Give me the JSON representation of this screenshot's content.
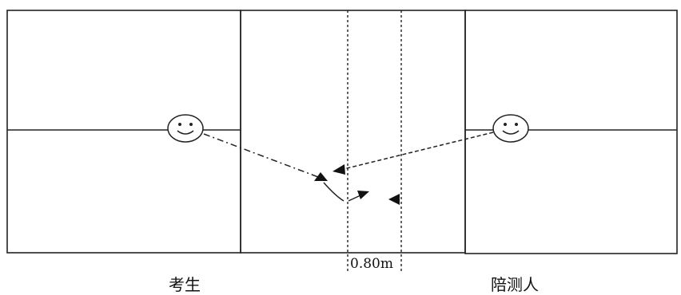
{
  "labels": {
    "examinee": "考生",
    "tester": "陪测人",
    "distance": "0.80m"
  },
  "icons": {
    "examinee_face": "smiley-face-icon",
    "tester_face": "smiley-face-icon"
  }
}
